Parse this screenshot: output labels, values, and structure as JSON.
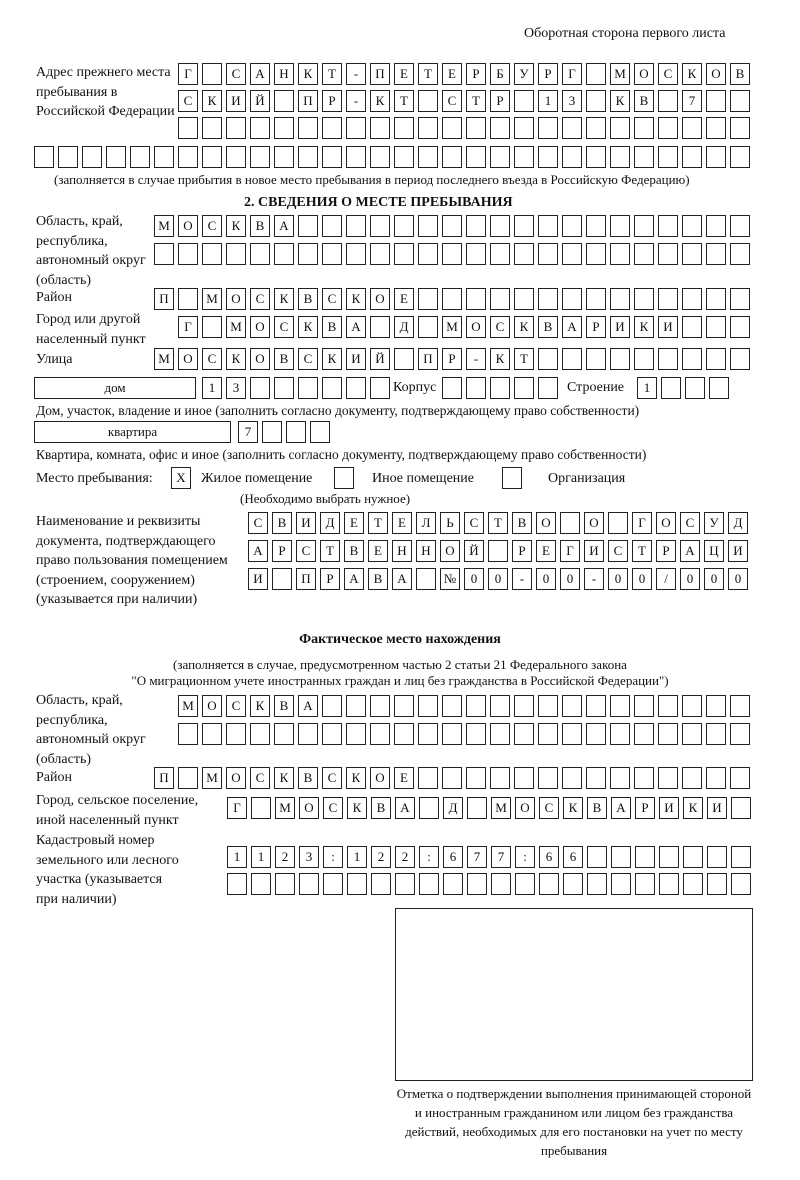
{
  "header": {
    "page_side": "Оборотная сторона первого листа"
  },
  "prev_address": {
    "label": "Адрес прежнего места пребывания в Российской Федерации",
    "rows": [
      [
        "Г",
        "",
        "С",
        "А",
        "Н",
        "К",
        "Т",
        "-",
        "П",
        "Е",
        "Т",
        "Е",
        "Р",
        "Б",
        "У",
        "Р",
        "Г",
        "",
        "М",
        "О",
        "С",
        "К",
        "О",
        "В"
      ],
      [
        "С",
        "К",
        "И",
        "Й",
        "",
        "П",
        "Р",
        "-",
        "К",
        "Т",
        "",
        "С",
        "Т",
        "Р",
        "",
        "1",
        "3",
        "",
        "К",
        "В",
        "",
        "7",
        "",
        ""
      ],
      [
        "",
        "",
        "",
        "",
        "",
        "",
        "",
        "",
        "",
        "",
        "",
        "",
        "",
        "",
        "",
        "",
        "",
        "",
        "",
        "",
        "",
        "",
        "",
        ""
      ],
      [
        "",
        "",
        "",
        "",
        "",
        "",
        "",
        "",
        "",
        "",
        "",
        "",
        "",
        "",
        "",
        "",
        "",
        "",
        "",
        "",
        "",
        "",
        "",
        "",
        "",
        "",
        "",
        "",
        "",
        ""
      ]
    ],
    "note": "(заполняется в случае прибытия в новое место пребывания в период последнего въезда в Российскую Федерацию)"
  },
  "section2": {
    "title": "2. СВЕДЕНИЯ О МЕСТЕ ПРЕБЫВАНИЯ",
    "region_label": "Область, край, республика, автономный округ (область)",
    "region_rows": [
      [
        "М",
        "О",
        "С",
        "К",
        "В",
        "А",
        "",
        "",
        "",
        "",
        "",
        "",
        "",
        "",
        "",
        "",
        "",
        "",
        "",
        "",
        "",
        "",
        "",
        "",
        ""
      ],
      [
        "",
        "",
        "",
        "",
        "",
        "",
        "",
        "",
        "",
        "",
        "",
        "",
        "",
        "",
        "",
        "",
        "",
        "",
        "",
        "",
        "",
        "",
        "",
        "",
        ""
      ]
    ],
    "district_label": "Район",
    "district_row": [
      "П",
      "",
      "М",
      "О",
      "С",
      "К",
      "В",
      "С",
      "К",
      "О",
      "Е",
      "",
      "",
      "",
      "",
      "",
      "",
      "",
      "",
      "",
      "",
      "",
      "",
      "",
      ""
    ],
    "city_label": "Город или другой населенный пункт",
    "city_row": [
      "Г",
      "",
      "М",
      "О",
      "С",
      "К",
      "В",
      "А",
      "",
      "Д",
      "",
      "М",
      "О",
      "С",
      "К",
      "В",
      "А",
      "Р",
      "И",
      "К",
      "И",
      "",
      "",
      ""
    ],
    "street_label": "Улица",
    "street_row": [
      "М",
      "О",
      "С",
      "К",
      "О",
      "В",
      "С",
      "К",
      "И",
      "Й",
      "",
      "П",
      "Р",
      "-",
      "К",
      "Т",
      "",
      "",
      "",
      "",
      "",
      "",
      "",
      "",
      ""
    ],
    "house_type": "дом",
    "house_row": [
      "1",
      "3",
      "",
      "",
      "",
      "",
      "",
      ""
    ],
    "korpus_label": "Корпус",
    "korpus_row": [
      "",
      "",
      "",
      "",
      ""
    ],
    "building_label": "Строение",
    "building_row": [
      "1",
      "",
      "",
      ""
    ],
    "house_note": "Дом, участок, владение и иное (заполнить согласно документу, подтверждающему право собственности)",
    "apt_type": "квартира",
    "apt_row": [
      "7",
      "",
      "",
      ""
    ],
    "apt_note": "Квартира, комната, офис и иное (заполнить согласно документу, подтверждающему право собственности)",
    "stay_label": "Место пребывания:",
    "opt_residential": {
      "label": "Жилое помещение",
      "mark": "X"
    },
    "opt_other": {
      "label": "Иное помещение",
      "mark": ""
    },
    "opt_org": {
      "label": "Организация",
      "mark": ""
    },
    "choose_note": "(Необходимо выбрать нужное)",
    "doc_label": "Наименование и реквизиты документа, подтверждающего право пользования помещением (строением, сооружением) (указывается при наличии)",
    "doc_rows": [
      [
        "С",
        "В",
        "И",
        "Д",
        "Е",
        "Т",
        "Е",
        "Л",
        "Ь",
        "С",
        "Т",
        "В",
        "О",
        "",
        "О",
        "",
        "Г",
        "О",
        "С",
        "У",
        "Д"
      ],
      [
        "А",
        "Р",
        "С",
        "Т",
        "В",
        "Е",
        "Н",
        "Н",
        "О",
        "Й",
        "",
        "Р",
        "Е",
        "Г",
        "И",
        "С",
        "Т",
        "Р",
        "А",
        "Ц",
        "И"
      ],
      [
        "И",
        "",
        "П",
        "Р",
        "А",
        "В",
        "А",
        "",
        "№",
        "0",
        "0",
        "-",
        "0",
        "0",
        "-",
        "0",
        "0",
        "/",
        "0",
        "0",
        "0"
      ]
    ]
  },
  "actual": {
    "title": "Фактическое место нахождения",
    "note1": "(заполняется в случае, предусмотренном частью 2 статьи 21 Федерального закона",
    "note2": "\"О миграционном учете иностранных граждан и лиц без гражданства в Российской Федерации\")",
    "region_label": "Область, край, республика, автономный округ (область)",
    "region_rows": [
      [
        "М",
        "О",
        "С",
        "К",
        "В",
        "А",
        "",
        "",
        "",
        "",
        "",
        "",
        "",
        "",
        "",
        "",
        "",
        "",
        "",
        "",
        "",
        "",
        "",
        ""
      ],
      [
        "",
        "",
        "",
        "",
        "",
        "",
        "",
        "",
        "",
        "",
        "",
        "",
        "",
        "",
        "",
        "",
        "",
        "",
        "",
        "",
        "",
        "",
        "",
        ""
      ]
    ],
    "district_label": "Район",
    "district_row": [
      "П",
      "",
      "М",
      "О",
      "С",
      "К",
      "В",
      "С",
      "К",
      "О",
      "Е",
      "",
      "",
      "",
      "",
      "",
      "",
      "",
      "",
      "",
      "",
      "",
      "",
      "",
      ""
    ],
    "city_label": "Город, сельское поселение, иной населенный пункт",
    "city_row": [
      "Г",
      "",
      "М",
      "О",
      "С",
      "К",
      "В",
      "А",
      "",
      "Д",
      "",
      "М",
      "О",
      "С",
      "К",
      "В",
      "А",
      "Р",
      "И",
      "К",
      "И",
      ""
    ],
    "cadastral_label": "Кадастровый номер земельного или лесного участка (указывается при наличии)",
    "cadastral_rows": [
      [
        "1",
        "1",
        "2",
        "3",
        ":",
        "1",
        "2",
        "2",
        ":",
        "6",
        "7",
        "7",
        ":",
        "6",
        "6",
        "",
        "",
        "",
        "",
        "",
        "",
        ""
      ],
      [
        "",
        "",
        "",
        "",
        "",
        "",
        "",
        "",
        "",
        "",
        "",
        "",
        "",
        "",
        "",
        "",
        "",
        "",
        "",
        "",
        "",
        ""
      ]
    ]
  },
  "stamp": {
    "caption": "Отметка о подтверждении выполнения принимающей стороной и иностранным гражданином или лицом без гражданства действий, необходимых для его постановки на учет по месту пребывания"
  }
}
